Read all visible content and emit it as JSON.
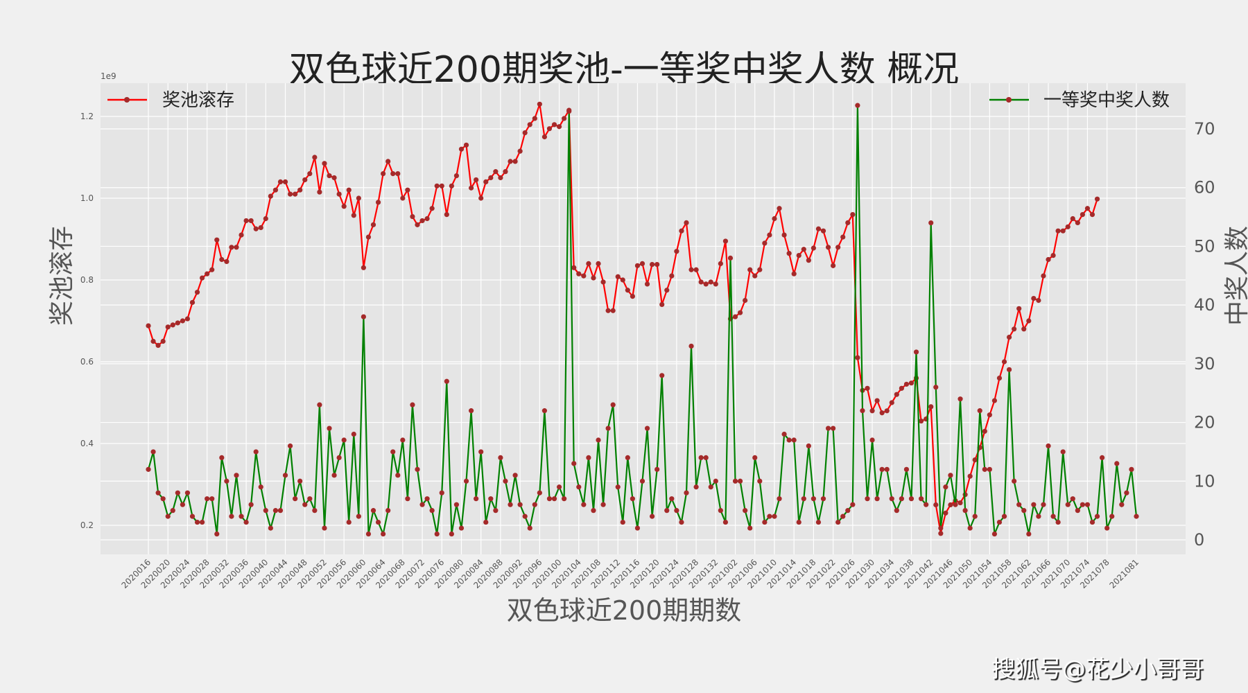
{
  "title": "双色球近200期奖池-一等奖中奖人数 概况",
  "xlabel": "双色球近200期期数",
  "ylabel_left": "奖池滚存",
  "ylabel_right": "中奖人数",
  "offset_label": "1e9",
  "watermark": "搜狐号@花少小哥哥",
  "legend": {
    "left": "奖池滚存",
    "right": "一等奖中奖人数"
  },
  "colors": {
    "pool": "#ff0000",
    "winners": "#008000",
    "marker": "#a52a2a",
    "plot_bg": "#e5e5e5",
    "grid": "#ffffff",
    "page_bg": "#f0f0f0"
  },
  "chart_data": {
    "type": "line",
    "title": "双色球近200期奖池-一等奖中奖人数 概况",
    "xlabel": "双色球近200期期数",
    "ylabel": "奖池滚存",
    "ylabel_right": "中奖人数",
    "x_tick_labels": [
      "2020016",
      "2020020",
      "2020024",
      "2020028",
      "2020032",
      "2020036",
      "2020040",
      "2020044",
      "2020048",
      "2020052",
      "2020056",
      "2020060",
      "2020064",
      "2020068",
      "2020072",
      "2020076",
      "2020080",
      "2020084",
      "2020088",
      "2020092",
      "2020096",
      "2020100",
      "2020104",
      "2020108",
      "2020112",
      "2020116",
      "2020120",
      "2020124",
      "2020128",
      "2020132",
      "2021002",
      "2021006",
      "2021010",
      "2021014",
      "2021018",
      "2021022",
      "2021026",
      "2021030",
      "2021034",
      "2021038",
      "2021042",
      "2021046",
      "2021050",
      "2021054",
      "2021058",
      "2021062",
      "2021066",
      "2021070",
      "2021074",
      "2021078",
      "2021081"
    ],
    "left_yticks": [
      "0.2",
      "0.4",
      "0.6",
      "0.8",
      "1.0",
      "1.2"
    ],
    "right_yticks": [
      "0",
      "10",
      "20",
      "30",
      "40",
      "50",
      "60",
      "70"
    ],
    "grid": true,
    "legend_position": {
      "pool": "upper left",
      "winners": "upper right"
    },
    "series": [
      {
        "name": "奖池滚存",
        "axis": "left",
        "unit": "1e9",
        "values": [
          0.688,
          0.65,
          0.64,
          0.65,
          0.685,
          0.69,
          0.695,
          0.7,
          0.705,
          0.745,
          0.77,
          0.805,
          0.815,
          0.825,
          0.898,
          0.85,
          0.845,
          0.88,
          0.88,
          0.91,
          0.945,
          0.945,
          0.925,
          0.928,
          0.95,
          1.005,
          1.02,
          1.04,
          1.04,
          1.01,
          1.01,
          1.02,
          1.045,
          1.06,
          1.1,
          1.015,
          1.085,
          1.055,
          1.05,
          1.01,
          0.98,
          1.02,
          0.958,
          1.0,
          0.83,
          0.905,
          0.935,
          0.99,
          1.06,
          1.09,
          1.06,
          1.06,
          1.0,
          1.02,
          0.955,
          0.935,
          0.945,
          0.95,
          0.975,
          1.03,
          1.03,
          0.96,
          1.03,
          1.055,
          1.12,
          1.13,
          1.025,
          1.045,
          1.0,
          1.04,
          1.05,
          1.065,
          1.05,
          1.065,
          1.09,
          1.09,
          1.115,
          1.16,
          1.18,
          1.195,
          1.23,
          1.15,
          1.17,
          1.18,
          1.175,
          1.195,
          1.215,
          0.83,
          0.815,
          0.81,
          0.84,
          0.805,
          0.84,
          0.795,
          0.725,
          0.725,
          0.808,
          0.8,
          0.775,
          0.76,
          0.835,
          0.84,
          0.79,
          0.838,
          0.838,
          0.74,
          0.775,
          0.81,
          0.87,
          0.92,
          0.94,
          0.825,
          0.825,
          0.795,
          0.79,
          0.795,
          0.79,
          0.84,
          0.895,
          0.705,
          0.71,
          0.72,
          0.75,
          0.825,
          0.81,
          0.825,
          0.89,
          0.91,
          0.95,
          0.975,
          0.91,
          0.865,
          0.815,
          0.86,
          0.875,
          0.848,
          0.878,
          0.925,
          0.92,
          0.88,
          0.835,
          0.88,
          0.905,
          0.94,
          0.96,
          0.61,
          0.53,
          0.535,
          0.48,
          0.505,
          0.475,
          0.48,
          0.5,
          0.52,
          0.535,
          0.545,
          0.548,
          0.56,
          0.455,
          0.46,
          0.49,
          0.25,
          0.18,
          0.23,
          0.25,
          0.26,
          0.255,
          0.275,
          0.32,
          0.36,
          0.39,
          0.43,
          0.47,
          0.505,
          0.56,
          0.6,
          0.66,
          0.68,
          0.73,
          0.68,
          0.7,
          0.755,
          0.75,
          0.81,
          0.85,
          0.86,
          0.92,
          0.92,
          0.93,
          0.95,
          0.94,
          0.96,
          0.975,
          0.96,
          0.998
        ]
      },
      {
        "name": "一等奖中奖人数",
        "axis": "right",
        "values": [
          12,
          15,
          8,
          7,
          4,
          5,
          8,
          6,
          8,
          4,
          3,
          3,
          7,
          7,
          1,
          14,
          10,
          4,
          11,
          4,
          3,
          6,
          15,
          9,
          5,
          2,
          5,
          5,
          11,
          16,
          7,
          10,
          6,
          7,
          5,
          23,
          2,
          19,
          11,
          14,
          17,
          3,
          18,
          4,
          38,
          1,
          5,
          3,
          1,
          5,
          15,
          11,
          17,
          7,
          23,
          12,
          6,
          7,
          5,
          1,
          8,
          27,
          1,
          6,
          2,
          10,
          22,
          7,
          15,
          3,
          7,
          5,
          14,
          10,
          6,
          11,
          6,
          4,
          2,
          6,
          8,
          22,
          7,
          7,
          9,
          7,
          73,
          13,
          9,
          6,
          14,
          5,
          17,
          6,
          19,
          23,
          9,
          3,
          14,
          7,
          2,
          10,
          19,
          4,
          12,
          28,
          5,
          7,
          5,
          3,
          8,
          33,
          9,
          14,
          14,
          9,
          10,
          5,
          3,
          48,
          10,
          10,
          5,
          2,
          14,
          10,
          3,
          4,
          4,
          7,
          18,
          17,
          17,
          3,
          7,
          16,
          7,
          3,
          7,
          19,
          19,
          3,
          4,
          5,
          6,
          74,
          22,
          7,
          17,
          7,
          12,
          12,
          7,
          5,
          7,
          12,
          7,
          32,
          7,
          6,
          54,
          26,
          2,
          9,
          11,
          6,
          24,
          5,
          2,
          4,
          22,
          12,
          12,
          1,
          3,
          4,
          29,
          10,
          6,
          5,
          1,
          6,
          4,
          6,
          16,
          4,
          3,
          15,
          6,
          7,
          5,
          6,
          6,
          3,
          4,
          14,
          2,
          4,
          13,
          6,
          8,
          12,
          4
        ]
      }
    ]
  }
}
